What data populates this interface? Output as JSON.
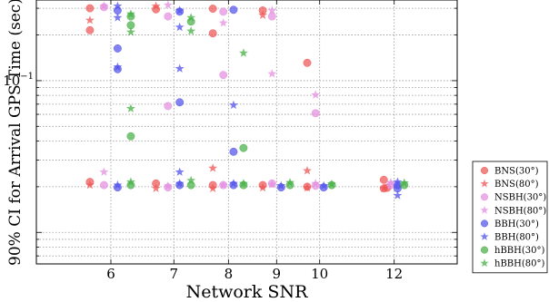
{
  "chart_data": {
    "type": "scatter",
    "xlabel": "Network SNR",
    "ylabel": "90% CI for Arrival GPS Time (sec)",
    "x_scale": "log",
    "y_scale": "log",
    "xlim": [
      5.0,
      14.0
    ],
    "ylim": [
      0.0062,
      0.34
    ],
    "x_ticks": [
      6,
      7,
      8,
      9,
      10,
      12
    ],
    "y_major_ticks": [
      {
        "value": 0.1,
        "base": "10",
        "exponent": "−1"
      }
    ],
    "grid": true,
    "legend_position": "outside-right-bottom",
    "series": [
      {
        "name": "BNS(30°)",
        "marker": "circle",
        "color": "#ef5555",
        "points": [
          [
            5.7,
            0.3
          ],
          [
            5.7,
            0.215
          ],
          [
            5.7,
            0.0215
          ],
          [
            6.7,
            0.295
          ],
          [
            6.7,
            0.021
          ],
          [
            7.7,
            0.298
          ],
          [
            7.7,
            0.205
          ],
          [
            7.7,
            0.0205
          ],
          [
            8.7,
            0.29
          ],
          [
            8.7,
            0.0205
          ],
          [
            9.7,
            0.131
          ],
          [
            9.7,
            0.02
          ],
          [
            11.7,
            0.0222
          ],
          [
            11.7,
            0.0195
          ],
          [
            11.8,
            0.0197
          ]
        ]
      },
      {
        "name": "BNS(80°)",
        "marker": "star",
        "color": "#ef5555",
        "points": [
          [
            5.7,
            0.25
          ],
          [
            5.7,
            0.0205
          ],
          [
            6.7,
            0.31
          ],
          [
            6.7,
            0.0195
          ],
          [
            7.7,
            0.0265
          ],
          [
            7.7,
            0.0195
          ],
          [
            8.7,
            0.27
          ],
          [
            8.7,
            0.0197
          ],
          [
            9.7,
            0.0255
          ],
          [
            9.7,
            0.0197
          ],
          [
            11.7,
            0.0195
          ]
        ]
      },
      {
        "name": "NSBH(30°)",
        "marker": "circle",
        "color": "#e48fe0",
        "points": [
          [
            5.9,
            0.305
          ],
          [
            5.9,
            0.0205
          ],
          [
            6.9,
            0.265
          ],
          [
            6.9,
            0.068
          ],
          [
            6.9,
            0.0198
          ],
          [
            7.9,
            0.285
          ],
          [
            7.9,
            0.109
          ],
          [
            7.9,
            0.0205
          ],
          [
            8.9,
            0.265
          ],
          [
            8.9,
            0.021
          ],
          [
            9.9,
            0.061
          ],
          [
            9.9,
            0.0203
          ],
          [
            11.9,
            0.0205
          ]
        ]
      },
      {
        "name": "NSBH(80°)",
        "marker": "star",
        "color": "#e48fe0",
        "points": [
          [
            5.9,
            0.31
          ],
          [
            5.9,
            0.025
          ],
          [
            6.9,
            0.315
          ],
          [
            6.9,
            0.0202
          ],
          [
            7.9,
            0.24
          ],
          [
            7.9,
            0.0205
          ],
          [
            8.9,
            0.29
          ],
          [
            8.9,
            0.111
          ],
          [
            8.9,
            0.0207
          ],
          [
            9.9,
            0.0805
          ],
          [
            9.9,
            0.021
          ],
          [
            11.9,
            0.0213
          ]
        ]
      },
      {
        "name": "BBH(30°)",
        "marker": "circle",
        "color": "#5252ec",
        "points": [
          [
            6.1,
            0.29
          ],
          [
            6.1,
            0.163
          ],
          [
            6.1,
            0.119
          ],
          [
            6.1,
            0.0198
          ],
          [
            7.1,
            0.285
          ],
          [
            7.1,
            0.072
          ],
          [
            7.1,
            0.0205
          ],
          [
            8.1,
            0.293
          ],
          [
            8.1,
            0.034
          ],
          [
            8.1,
            0.0205
          ],
          [
            9.1,
            0.0198
          ],
          [
            10.1,
            0.0198
          ],
          [
            12.1,
            0.0205
          ],
          [
            12.1,
            0.0195
          ]
        ]
      },
      {
        "name": "BBH(80°)",
        "marker": "star",
        "color": "#5252ec",
        "points": [
          [
            6.1,
            0.31
          ],
          [
            6.1,
            0.26
          ],
          [
            6.1,
            0.123
          ],
          [
            6.1,
            0.0205
          ],
          [
            7.1,
            0.29
          ],
          [
            7.1,
            0.225
          ],
          [
            7.1,
            0.12
          ],
          [
            7.1,
            0.025
          ],
          [
            7.1,
            0.021
          ],
          [
            8.1,
            0.069
          ],
          [
            8.1,
            0.021
          ],
          [
            9.1,
            0.0203
          ],
          [
            10.1,
            0.0203
          ],
          [
            12.1,
            0.0215
          ],
          [
            12.1,
            0.0175
          ]
        ]
      },
      {
        "name": "hBBH(30°)",
        "marker": "circle",
        "color": "#46b046",
        "points": [
          [
            6.3,
            0.265
          ],
          [
            6.3,
            0.232
          ],
          [
            6.3,
            0.043
          ],
          [
            6.3,
            0.0205
          ],
          [
            7.3,
            0.245
          ],
          [
            7.3,
            0.0205
          ],
          [
            8.3,
            0.036
          ],
          [
            8.3,
            0.0205
          ],
          [
            9.3,
            0.0205
          ],
          [
            10.3,
            0.0205
          ],
          [
            12.3,
            0.0205
          ]
        ]
      },
      {
        "name": "hBBH(80°)",
        "marker": "star",
        "color": "#46b046",
        "points": [
          [
            6.3,
            0.275
          ],
          [
            6.3,
            0.209
          ],
          [
            6.3,
            0.0655
          ],
          [
            6.3,
            0.0215
          ],
          [
            7.3,
            0.26
          ],
          [
            7.3,
            0.212
          ],
          [
            7.3,
            0.022
          ],
          [
            8.3,
            0.152
          ],
          [
            8.3,
            0.021
          ],
          [
            9.3,
            0.0213
          ],
          [
            10.3,
            0.0208
          ],
          [
            12.3,
            0.0212
          ]
        ]
      }
    ]
  }
}
